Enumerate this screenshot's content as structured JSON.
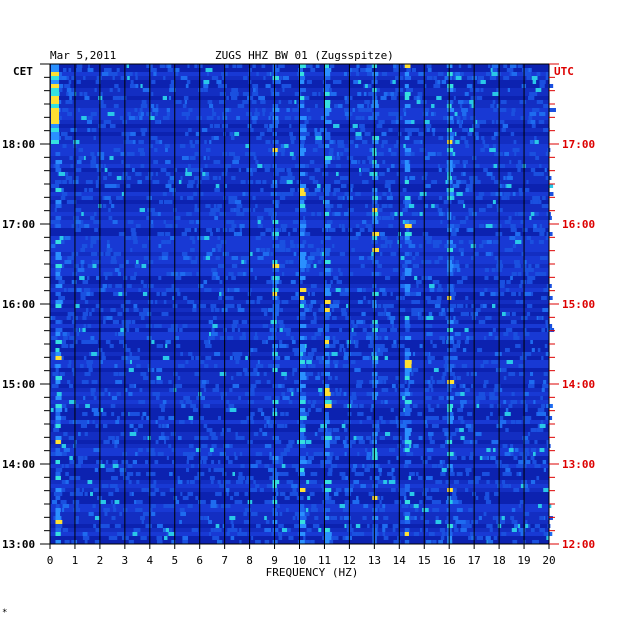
{
  "header": {
    "date": "Mar 5,2011",
    "station": "ZUGS HHZ BW 01 (Zugsspitze)",
    "left_zone": "CET",
    "right_zone": "UTC"
  },
  "footer": {
    "mark": "*"
  },
  "colors": {
    "left_labels": "#000000",
    "right_labels": "#dd0000",
    "background": "#0c1fa8",
    "grid": "#000000"
  },
  "chart_data": {
    "type": "heatmap",
    "title": "ZUGS HHZ BW 01 (Zugsspitze)",
    "xlabel": "FREQUENCY (HZ)",
    "ylabel": "",
    "xlim": [
      0,
      20
    ],
    "x_ticks": [
      "0",
      "1",
      "2",
      "3",
      "4",
      "5",
      "6",
      "7",
      "8",
      "9",
      "10",
      "11",
      "12",
      "13",
      "14",
      "15",
      "16",
      "17",
      "18",
      "19",
      "20"
    ],
    "y_ticks_left": [
      "18:00",
      "17:00",
      "16:00",
      "15:00",
      "14:00",
      "13:00"
    ],
    "y_ticks_right": [
      "17:00",
      "16:00",
      "15:00",
      "14:00",
      "13:00",
      "12:00"
    ],
    "y_range_cet": [
      "13:00",
      "19:00"
    ],
    "grid": true,
    "colormap": [
      "dark blue",
      "blue",
      "cyan",
      "yellow",
      "red"
    ],
    "dominant_frequency_bands_hz": [
      0.3,
      9.0,
      10.1,
      11.1,
      13.0,
      14.3,
      16.0
    ]
  }
}
